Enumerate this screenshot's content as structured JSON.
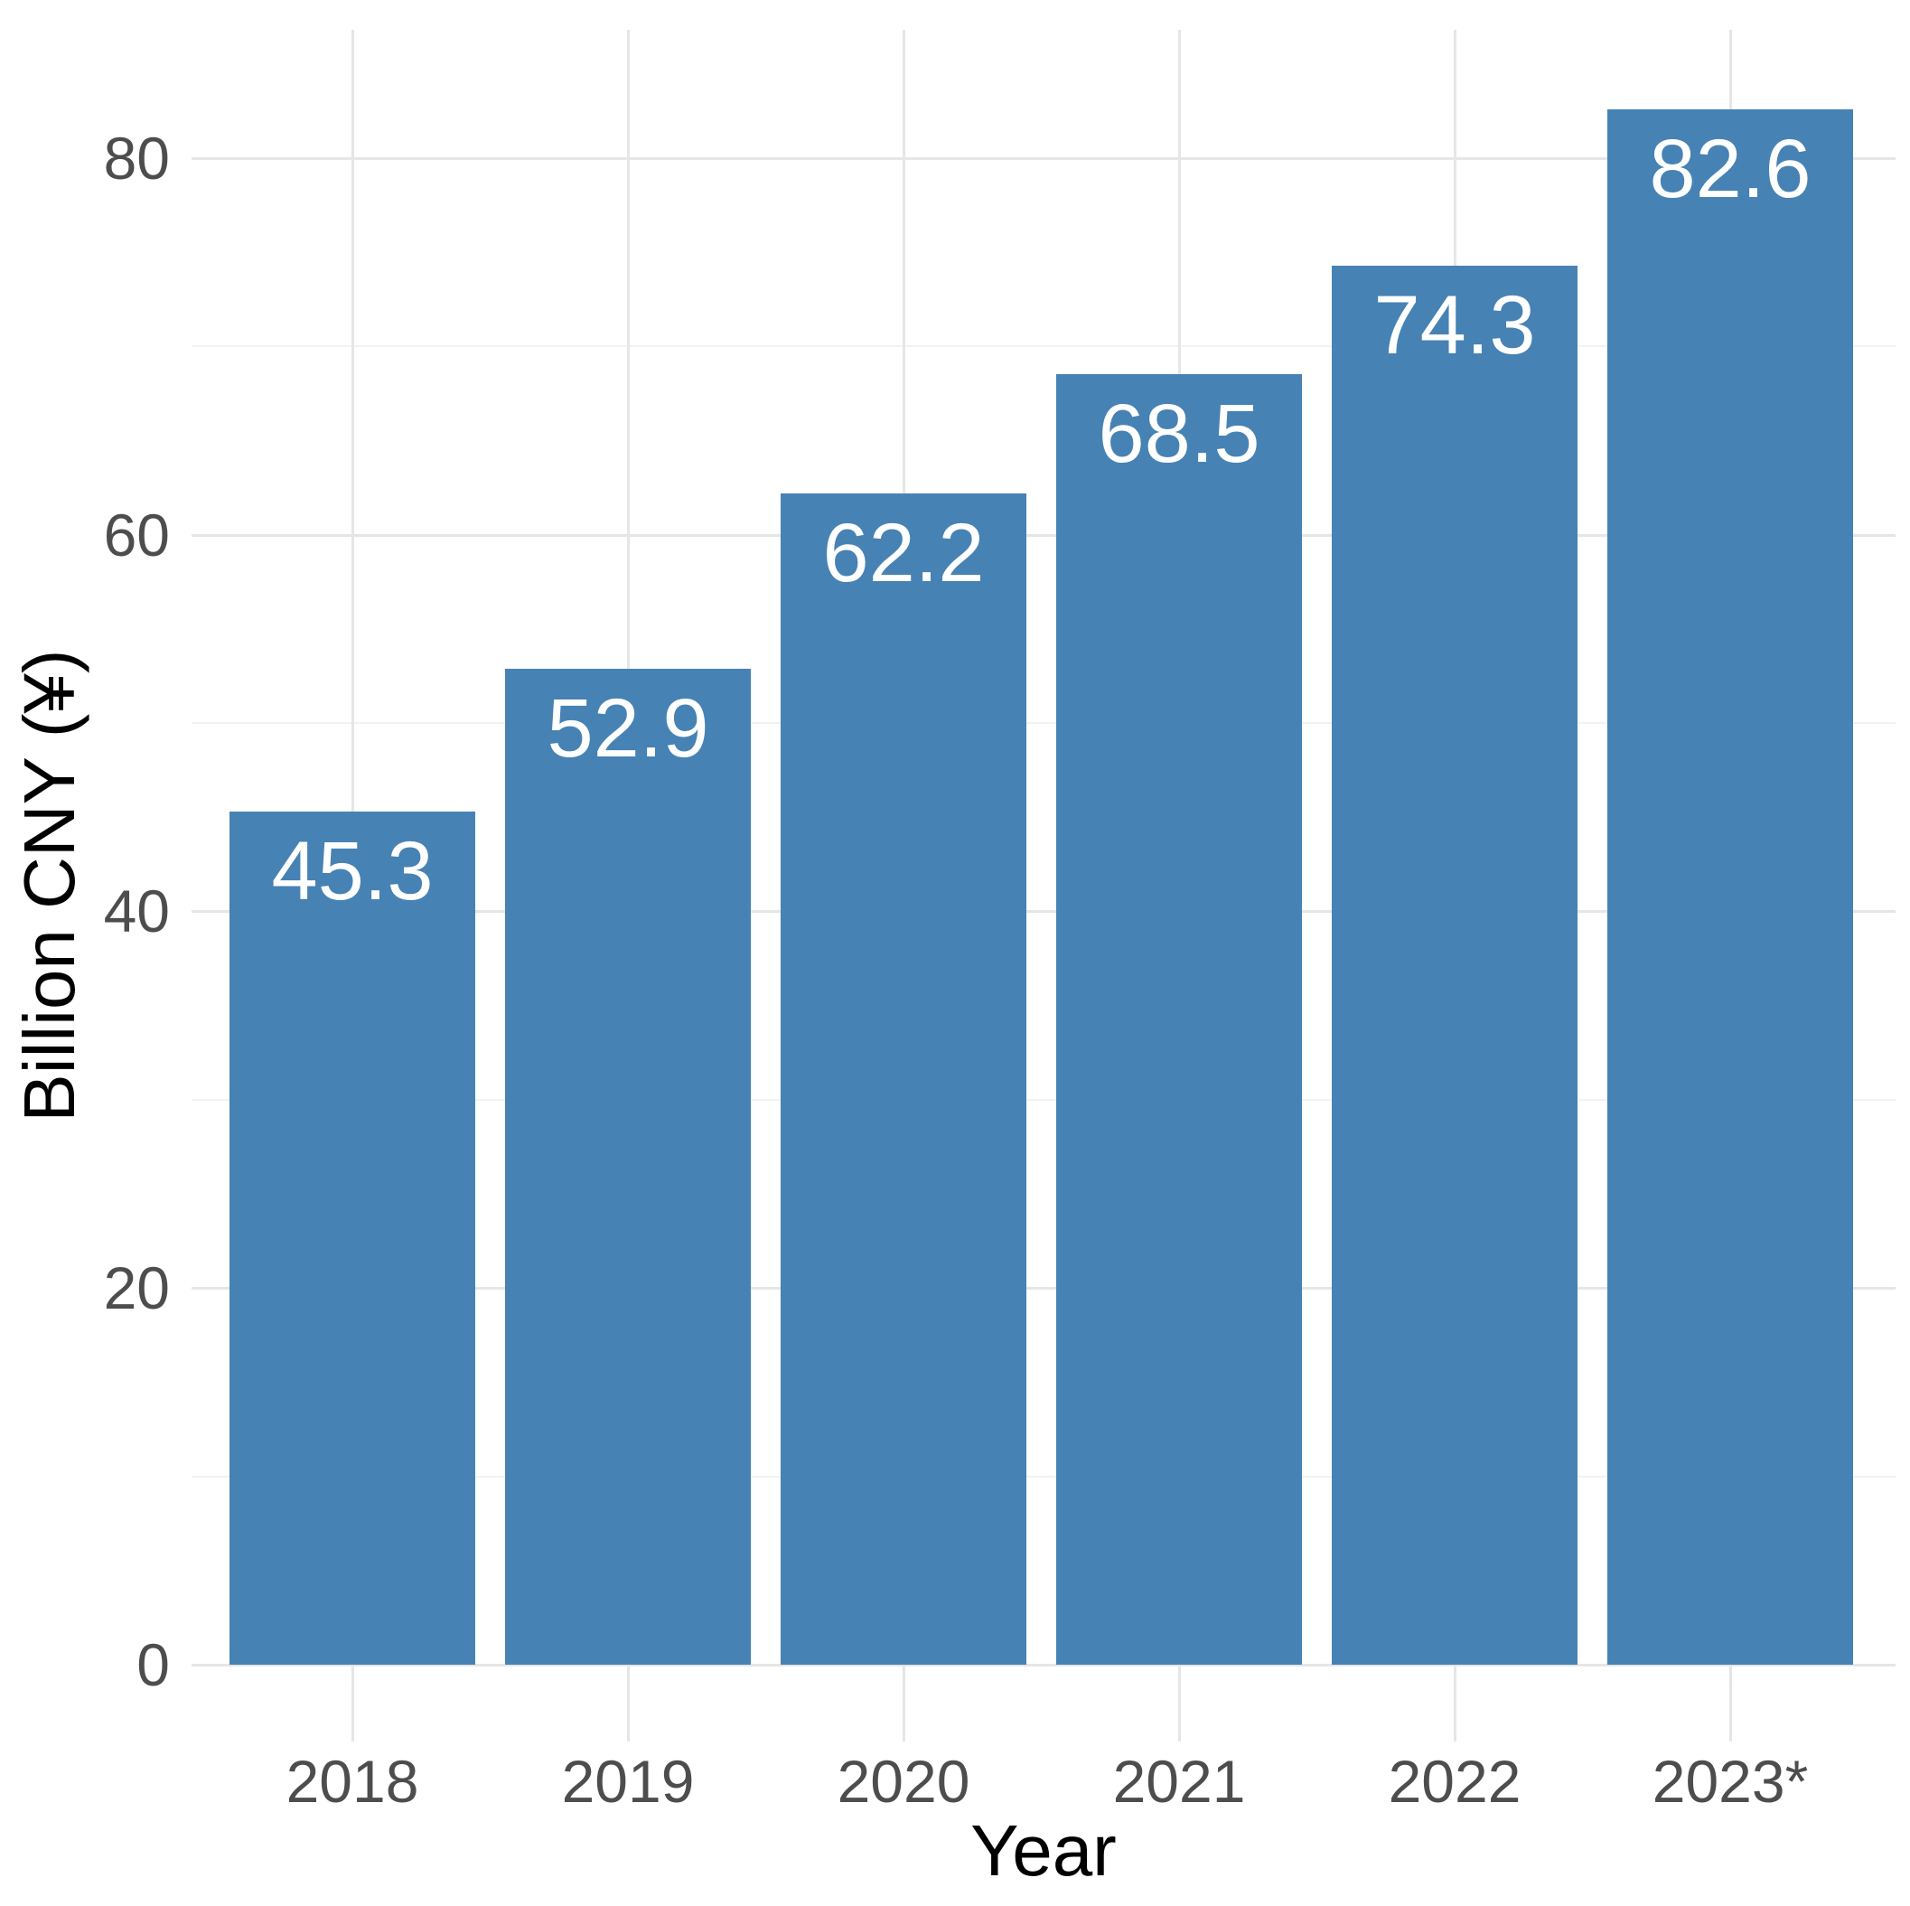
{
  "chart_data": {
    "type": "bar",
    "categories": [
      "2018",
      "2019",
      "2020",
      "2021",
      "2022",
      "2023*"
    ],
    "values": [
      45.3,
      52.9,
      62.2,
      68.5,
      74.3,
      82.6
    ],
    "value_labels": [
      "45.3",
      "52.9",
      "62.2",
      "68.5",
      "74.3",
      "82.6"
    ],
    "xlabel": "Year",
    "ylabel": "Billion CNY (¥)",
    "ylim": [
      0,
      86.8
    ],
    "yticks": [
      0,
      20,
      40,
      60,
      80
    ],
    "yticks_minor": [
      10,
      30,
      50,
      70
    ],
    "grid": true,
    "legend": false,
    "colors": {
      "bar": "#4682B4",
      "bar_value_label": "#FFFFFF",
      "tick_label": "#4D4D4D",
      "axis_title": "#000000",
      "grid_major": "#E6E6E6",
      "grid_minor": "#F2F2F2",
      "background": "#FFFFFF"
    }
  }
}
